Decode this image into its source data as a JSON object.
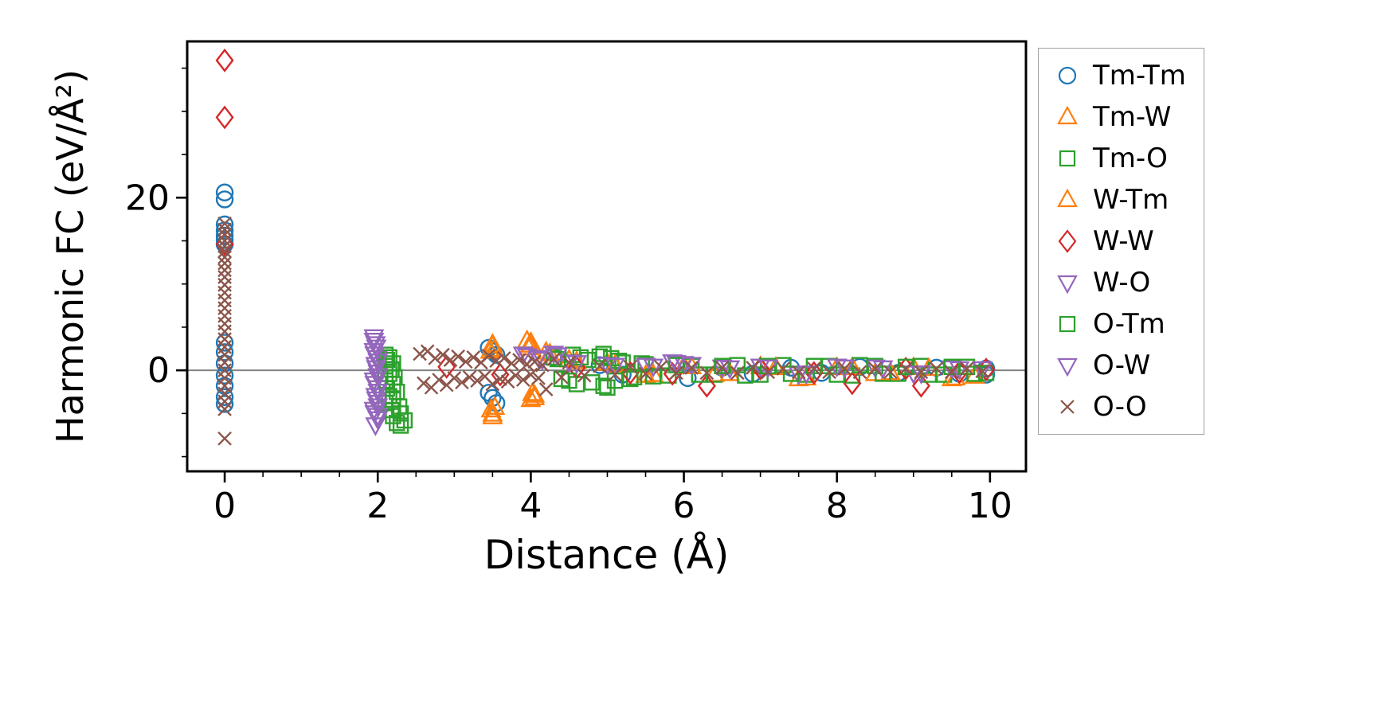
{
  "figure": {
    "background": "#ffffff"
  },
  "chart_data": {
    "type": "scatter",
    "title": "",
    "xlabel": "Distance (Å)",
    "ylabel": "Harmonic FC (eV/Å²)",
    "xlim": [
      -0.49,
      10.47
    ],
    "ylim": [
      -11.7,
      38.1
    ],
    "xticks": [
      0,
      2,
      4,
      6,
      8,
      10
    ],
    "yticks": [
      0,
      20
    ],
    "x_minor_step": 0.5,
    "y_minor_step": 5,
    "grid": false,
    "hline_y": 0,
    "hline_color": "#808080",
    "legend_position": "outside-right",
    "series": [
      {
        "name": "Tm-Tm",
        "marker": "circle",
        "color": "#1f77b4",
        "points": [
          [
            0,
            20.6
          ],
          [
            0,
            19.8
          ],
          [
            0,
            16.9
          ],
          [
            0,
            16.2
          ],
          [
            0,
            15.6
          ],
          [
            0,
            15.1
          ],
          [
            0,
            14.6
          ],
          [
            0,
            3.2
          ],
          [
            0,
            2.1
          ],
          [
            0,
            0.8
          ],
          [
            0,
            -0.6
          ],
          [
            0,
            -1.8
          ],
          [
            0,
            -3.1
          ],
          [
            0,
            -3.9
          ],
          [
            3.45,
            2.6
          ],
          [
            3.5,
            2.2
          ],
          [
            3.55,
            1.8
          ],
          [
            3.45,
            -2.6
          ],
          [
            3.5,
            -3.2
          ],
          [
            3.55,
            -3.8
          ],
          [
            4.9,
            0.6
          ],
          [
            5.2,
            -0.5
          ],
          [
            6.05,
            -0.9
          ],
          [
            6.5,
            0.3
          ],
          [
            6.9,
            -0.4
          ],
          [
            7.4,
            0.3
          ],
          [
            7.8,
            -0.3
          ],
          [
            8.3,
            0.4
          ],
          [
            8.8,
            -0.3
          ],
          [
            9.3,
            0.3
          ],
          [
            9.6,
            -0.4
          ],
          [
            9.95,
            0.2
          ],
          [
            9.95,
            -0.5
          ]
        ]
      },
      {
        "name": "Tm-W",
        "marker": "triangle-up",
        "color": "#ff7f0e",
        "points": [
          [
            3.5,
            3.0
          ],
          [
            3.52,
            2.4
          ],
          [
            3.48,
            -4.6
          ],
          [
            3.5,
            -5.4
          ],
          [
            3.95,
            3.4
          ],
          [
            4.0,
            2.9
          ],
          [
            4.05,
            -2.9
          ],
          [
            4.0,
            -3.4
          ],
          [
            4.2,
            2.1
          ],
          [
            4.5,
            1.2
          ],
          [
            5.0,
            0.8
          ],
          [
            5.5,
            -0.6
          ],
          [
            6.0,
            0.5
          ],
          [
            6.4,
            -0.5
          ],
          [
            7.0,
            0.4
          ],
          [
            7.5,
            -1.0
          ],
          [
            8.0,
            0.3
          ],
          [
            8.5,
            -0.4
          ],
          [
            9.0,
            0.3
          ],
          [
            9.5,
            -1.0
          ],
          [
            9.8,
            -0.7
          ]
        ]
      },
      {
        "name": "Tm-O",
        "marker": "square",
        "color": "#2ca02c",
        "points": [
          [
            2.1,
            1.8
          ],
          [
            2.12,
            1.2
          ],
          [
            2.1,
            0.5
          ],
          [
            2.15,
            -0.4
          ],
          [
            2.1,
            -1.2
          ],
          [
            2.12,
            -2.1
          ],
          [
            2.15,
            -3.0
          ],
          [
            2.1,
            -3.8
          ],
          [
            2.18,
            -4.6
          ],
          [
            2.2,
            -5.3
          ],
          [
            2.25,
            -6.1
          ],
          [
            2.3,
            -6.4
          ],
          [
            4.3,
            1.5
          ],
          [
            4.4,
            -1.0
          ],
          [
            4.55,
            1.8
          ],
          [
            4.6,
            -1.6
          ],
          [
            4.75,
            1.2
          ],
          [
            4.9,
            1.6
          ],
          [
            4.95,
            -1.8
          ],
          [
            5.05,
            1.4
          ],
          [
            5.1,
            -1.2
          ],
          [
            5.2,
            0.9
          ],
          [
            5.35,
            -0.8
          ],
          [
            5.5,
            0.7
          ],
          [
            5.8,
            -0.6
          ],
          [
            6.1,
            0.5
          ],
          [
            6.4,
            -0.5
          ],
          [
            6.7,
            0.6
          ],
          [
            7.0,
            -0.5
          ],
          [
            7.3,
            0.6
          ],
          [
            7.6,
            -0.5
          ],
          [
            7.9,
            0.5
          ],
          [
            8.2,
            -0.6
          ],
          [
            8.5,
            0.5
          ],
          [
            8.8,
            -0.4
          ],
          [
            9.1,
            0.5
          ],
          [
            9.4,
            -0.5
          ],
          [
            9.7,
            0.4
          ],
          [
            9.95,
            -0.3
          ]
        ]
      },
      {
        "name": "W-Tm",
        "marker": "triangle-up",
        "color": "#ff7f0e",
        "points": [
          [
            3.5,
            2.8
          ],
          [
            3.47,
            2.2
          ],
          [
            3.53,
            -4.3
          ],
          [
            3.5,
            -5.1
          ],
          [
            4.0,
            3.2
          ],
          [
            3.97,
            2.6
          ],
          [
            4.02,
            -2.7
          ],
          [
            4.05,
            -3.2
          ],
          [
            4.25,
            1.9
          ],
          [
            4.6,
            1.0
          ],
          [
            5.1,
            0.6
          ],
          [
            5.6,
            -0.5
          ],
          [
            6.1,
            0.4
          ],
          [
            6.6,
            -0.4
          ],
          [
            7.2,
            0.3
          ],
          [
            7.6,
            -0.9
          ],
          [
            8.2,
            0.3
          ],
          [
            8.7,
            -0.3
          ],
          [
            9.2,
            0.2
          ],
          [
            9.55,
            -0.9
          ]
        ]
      },
      {
        "name": "W-W",
        "marker": "diamond",
        "color": "#d62728",
        "points": [
          [
            0,
            35.9
          ],
          [
            0,
            29.3
          ],
          [
            0,
            14.6
          ],
          [
            2.9,
            0.4
          ],
          [
            3.6,
            -0.5
          ],
          [
            4.6,
            0.3
          ],
          [
            5.3,
            -0.3
          ],
          [
            5.85,
            -0.4
          ],
          [
            6.3,
            -1.8
          ],
          [
            7.0,
            0.2
          ],
          [
            7.7,
            -0.3
          ],
          [
            8.2,
            -1.5
          ],
          [
            8.9,
            0.2
          ],
          [
            9.1,
            -1.8
          ],
          [
            9.6,
            -0.2
          ],
          [
            9.95,
            0.1
          ]
        ]
      },
      {
        "name": "W-O",
        "marker": "triangle-down",
        "color": "#9467bd",
        "points": [
          [
            1.95,
            3.9
          ],
          [
            1.97,
            3.1
          ],
          [
            1.95,
            2.3
          ],
          [
            2.0,
            1.5
          ],
          [
            1.97,
            0.7
          ],
          [
            2.0,
            -0.2
          ],
          [
            1.95,
            -1.1
          ],
          [
            2.0,
            -2.0
          ],
          [
            1.97,
            -2.9
          ],
          [
            2.0,
            -3.7
          ],
          [
            1.95,
            -4.5
          ],
          [
            2.0,
            -5.2
          ],
          [
            1.97,
            -6.3
          ],
          [
            3.9,
            1.9
          ],
          [
            4.1,
            1.5
          ],
          [
            4.3,
            2.0
          ],
          [
            4.5,
            1.0
          ],
          [
            5.0,
            0.7
          ],
          [
            5.5,
            0.6
          ],
          [
            5.85,
            1.0
          ],
          [
            6.0,
            0.8
          ],
          [
            6.5,
            0.4
          ],
          [
            7.0,
            0.5
          ],
          [
            7.5,
            -0.4
          ],
          [
            8.0,
            0.5
          ],
          [
            8.5,
            0.4
          ],
          [
            9.0,
            -0.3
          ],
          [
            9.5,
            0.3
          ],
          [
            9.9,
            0.2
          ]
        ]
      },
      {
        "name": "O-Tm",
        "marker": "square",
        "color": "#2ca02c",
        "points": [
          [
            2.15,
            1.5
          ],
          [
            2.2,
            0.8
          ],
          [
            2.18,
            0.1
          ],
          [
            2.22,
            -0.8
          ],
          [
            2.2,
            -1.6
          ],
          [
            2.25,
            -2.5
          ],
          [
            2.2,
            -3.4
          ],
          [
            2.28,
            -4.2
          ],
          [
            2.3,
            -5.0
          ],
          [
            2.35,
            -5.8
          ],
          [
            4.35,
            1.3
          ],
          [
            4.5,
            -1.2
          ],
          [
            4.65,
            1.5
          ],
          [
            4.8,
            -1.4
          ],
          [
            4.95,
            1.9
          ],
          [
            5.0,
            -2.0
          ],
          [
            5.15,
            1.1
          ],
          [
            5.3,
            -1.0
          ],
          [
            5.45,
            0.8
          ],
          [
            5.6,
            -0.7
          ],
          [
            5.9,
            0.6
          ],
          [
            6.2,
            -0.5
          ],
          [
            6.5,
            0.5
          ],
          [
            6.8,
            -0.6
          ],
          [
            7.1,
            0.5
          ],
          [
            7.4,
            -0.4
          ],
          [
            7.7,
            0.5
          ],
          [
            8.0,
            -0.5
          ],
          [
            8.3,
            0.6
          ],
          [
            8.6,
            -0.4
          ],
          [
            8.9,
            0.4
          ],
          [
            9.2,
            -0.5
          ],
          [
            9.5,
            0.4
          ],
          [
            9.8,
            -0.4
          ]
        ]
      },
      {
        "name": "O-W",
        "marker": "triangle-down",
        "color": "#9467bd",
        "points": [
          [
            1.95,
            3.5
          ],
          [
            1.98,
            2.7
          ],
          [
            1.96,
            1.9
          ],
          [
            2.0,
            1.1
          ],
          [
            1.98,
            0.3
          ],
          [
            2.0,
            -0.6
          ],
          [
            1.96,
            -1.5
          ],
          [
            2.0,
            -2.4
          ],
          [
            1.98,
            -3.3
          ],
          [
            2.0,
            -4.1
          ],
          [
            1.96,
            -4.9
          ],
          [
            2.0,
            -5.6
          ],
          [
            3.95,
            1.7
          ],
          [
            4.15,
            1.3
          ],
          [
            4.35,
            1.8
          ],
          [
            4.6,
            0.9
          ],
          [
            5.1,
            0.6
          ],
          [
            5.6,
            0.5
          ],
          [
            5.9,
            0.9
          ],
          [
            6.1,
            0.7
          ],
          [
            6.6,
            0.3
          ],
          [
            7.1,
            0.4
          ],
          [
            7.6,
            -0.3
          ],
          [
            8.1,
            0.4
          ],
          [
            8.6,
            0.3
          ],
          [
            9.1,
            -0.3
          ],
          [
            9.6,
            0.2
          ]
        ]
      },
      {
        "name": "O-O",
        "marker": "x",
        "color": "#8c564b",
        "points": [
          [
            0,
            17.0
          ],
          [
            0,
            16.3
          ],
          [
            0,
            15.7
          ],
          [
            0,
            15.0
          ],
          [
            0,
            14.4
          ],
          [
            0,
            13.8
          ],
          [
            0,
            13.1
          ],
          [
            0,
            12.4
          ],
          [
            0,
            11.6
          ],
          [
            0,
            10.8
          ],
          [
            0,
            9.9
          ],
          [
            0,
            9.0
          ],
          [
            0,
            8.1
          ],
          [
            0,
            7.2
          ],
          [
            0,
            6.3
          ],
          [
            0,
            5.4
          ],
          [
            0,
            4.5
          ],
          [
            0,
            3.6
          ],
          [
            0,
            2.7
          ],
          [
            0,
            1.8
          ],
          [
            0,
            0.9
          ],
          [
            0,
            0.0
          ],
          [
            0,
            -0.9
          ],
          [
            0,
            -1.8
          ],
          [
            0,
            -2.7
          ],
          [
            0,
            -3.6
          ],
          [
            0,
            -4.5
          ],
          [
            0,
            -7.9
          ],
          [
            2.55,
            1.9
          ],
          [
            2.6,
            -1.5
          ],
          [
            2.65,
            2.2
          ],
          [
            2.7,
            -2.0
          ],
          [
            2.75,
            1.4
          ],
          [
            2.8,
            -1.1
          ],
          [
            2.85,
            1.8
          ],
          [
            2.9,
            -1.7
          ],
          [
            2.95,
            1.2
          ],
          [
            3.0,
            -0.9
          ],
          [
            3.05,
            1.6
          ],
          [
            3.1,
            -1.4
          ],
          [
            3.15,
            1.0
          ],
          [
            3.2,
            -0.8
          ],
          [
            3.25,
            1.5
          ],
          [
            3.3,
            -1.2
          ],
          [
            3.35,
            0.9
          ],
          [
            3.4,
            -0.7
          ],
          [
            3.45,
            1.7
          ],
          [
            3.5,
            -1.6
          ],
          [
            3.55,
            1.1
          ],
          [
            3.6,
            -1.0
          ],
          [
            3.65,
            1.4
          ],
          [
            3.7,
            -1.3
          ],
          [
            3.75,
            0.8
          ],
          [
            3.8,
            -0.6
          ],
          [
            3.85,
            1.2
          ],
          [
            3.9,
            -1.1
          ],
          [
            3.95,
            0.7
          ],
          [
            4.0,
            -0.5
          ],
          [
            4.05,
            1.0
          ],
          [
            4.1,
            -0.9
          ],
          [
            4.15,
            0.6
          ],
          [
            4.2,
            -2.2
          ],
          [
            4.3,
            1.3
          ],
          [
            4.4,
            -0.8
          ],
          [
            4.5,
            0.9
          ],
          [
            4.7,
            -0.6
          ],
          [
            4.9,
            0.5
          ],
          [
            5.1,
            -0.5
          ],
          [
            5.3,
            0.4
          ],
          [
            5.5,
            -0.4
          ],
          [
            5.7,
            0.4
          ],
          [
            5.9,
            -0.3
          ],
          [
            6.1,
            0.3
          ],
          [
            6.3,
            -0.3
          ],
          [
            6.5,
            0.3
          ],
          [
            6.7,
            -0.3
          ],
          [
            6.9,
            0.3
          ],
          [
            7.1,
            -0.2
          ],
          [
            7.3,
            0.2
          ],
          [
            7.5,
            -0.2
          ],
          [
            7.7,
            0.2
          ],
          [
            7.9,
            -0.2
          ],
          [
            8.1,
            0.2
          ],
          [
            8.3,
            -0.2
          ],
          [
            8.5,
            0.2
          ],
          [
            8.7,
            -0.2
          ],
          [
            8.9,
            0.2
          ],
          [
            9.1,
            -0.2
          ],
          [
            9.3,
            0.2
          ],
          [
            9.5,
            -0.2
          ],
          [
            9.7,
            0.2
          ],
          [
            9.9,
            -0.1
          ]
        ]
      }
    ]
  }
}
